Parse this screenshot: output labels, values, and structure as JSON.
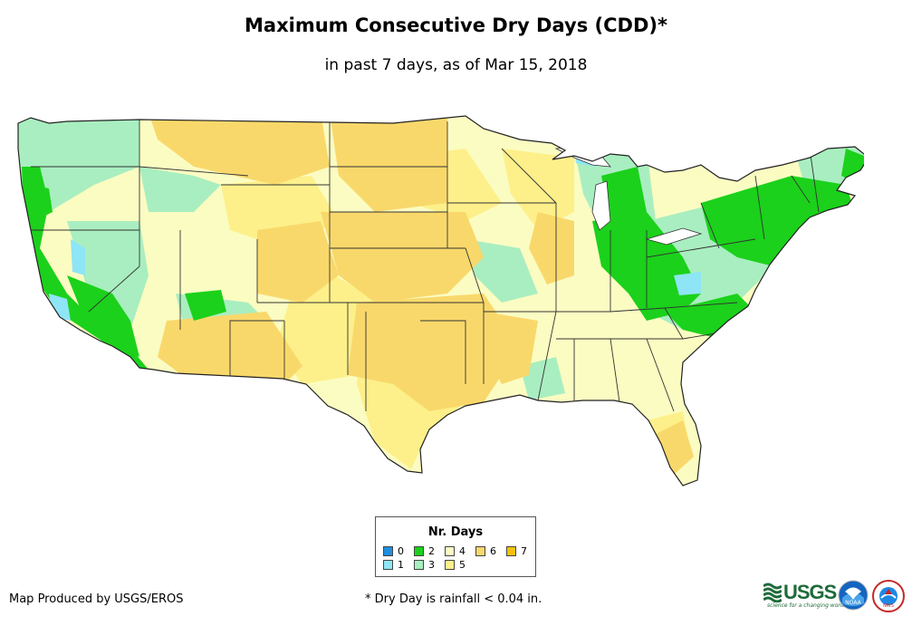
{
  "title": "Maximum Consecutive Dry Days (CDD)*",
  "subtitle": "in past 7 days, as of Mar 15, 2018",
  "legend": {
    "title": "Nr. Days",
    "items": [
      {
        "label": "0",
        "color": "#1f8fe0"
      },
      {
        "label": "1",
        "color": "#8ee5f5"
      },
      {
        "label": "2",
        "color": "#1bd11b"
      },
      {
        "label": "3",
        "color": "#a9eec0"
      },
      {
        "label": "4",
        "color": "#fbfcc2"
      },
      {
        "label": "5",
        "color": "#fdf08a"
      },
      {
        "label": "6",
        "color": "#f9d86b"
      },
      {
        "label": "7",
        "color": "#f4c20a"
      }
    ]
  },
  "credit": "Map Produced by USGS/EROS",
  "footnote": "* Dry Day is rainfall < 0.04 in.",
  "logos": {
    "usgs": {
      "word": "USGS",
      "tagline": "science for a changing world"
    },
    "noaa": {
      "word": "NOAA"
    },
    "nws": {
      "word": "NWS"
    }
  }
}
